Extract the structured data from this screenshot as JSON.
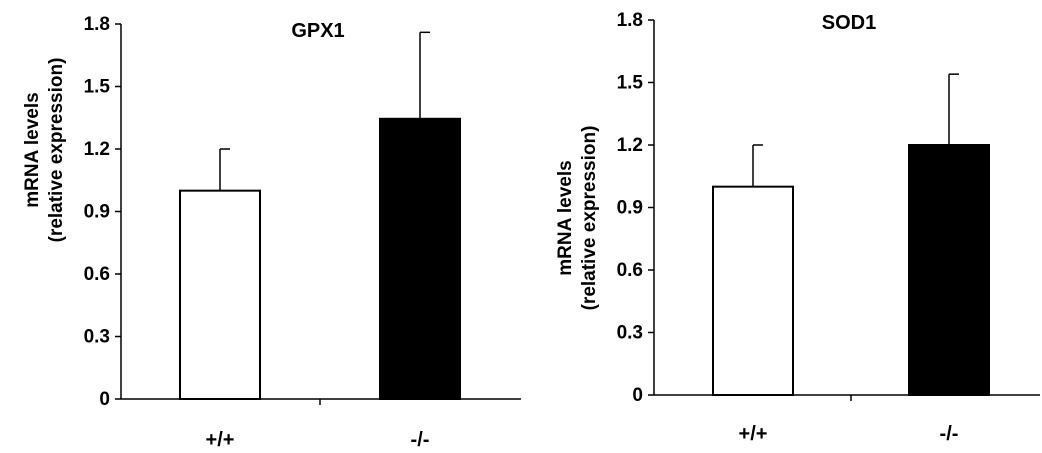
{
  "colors": {
    "axis": "#000000",
    "bar_wt": "#ffffff",
    "bar_ko": "#000000",
    "error": "#000000"
  },
  "chart_data": [
    {
      "type": "bar",
      "title": "GPX1",
      "ylabel_line1": "mRNA levels",
      "ylabel_line2": "(relative expression)",
      "categories": [
        "+/+",
        "-/-"
      ],
      "values": [
        1.0,
        1.345
      ],
      "errors": [
        0.2,
        0.415
      ],
      "ylim": [
        0,
        1.8
      ],
      "yticks": [
        0,
        0.3,
        0.6,
        0.9,
        1.2,
        1.5,
        1.8
      ],
      "ytick_labels": [
        "0",
        "0.3",
        "0.6",
        "0.9",
        "1.2",
        "1.5",
        "1.8"
      ],
      "bar_fills": [
        "#ffffff",
        "#000000"
      ],
      "grid": false,
      "legend": "none"
    },
    {
      "type": "bar",
      "title": "SOD1",
      "ylabel_line1": "mRNA levels",
      "ylabel_line2": "(relative expression)",
      "categories": [
        "+/+",
        "-/-"
      ],
      "values": [
        1.0,
        1.2
      ],
      "errors": [
        0.2,
        0.34
      ],
      "ylim": [
        0,
        1.8
      ],
      "yticks": [
        0,
        0.3,
        0.6,
        0.9,
        1.2,
        1.5,
        1.8
      ],
      "ytick_labels": [
        "0",
        "0.3",
        "0.6",
        "0.9",
        "1.2",
        "1.5",
        "1.8"
      ],
      "bar_fills": [
        "#ffffff",
        "#000000"
      ],
      "grid": false,
      "legend": "none"
    }
  ]
}
